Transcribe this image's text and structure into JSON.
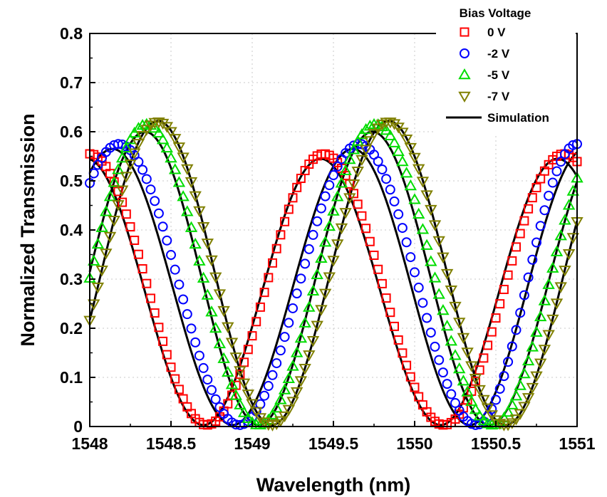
{
  "chart_data": {
    "type": "scatter",
    "xlabel": "Wavelength (nm)",
    "ylabel": "Normalized Transmission",
    "xlim": [
      1548,
      1551
    ],
    "ylim": [
      0,
      0.8
    ],
    "x_ticks": [
      "1548",
      "1548.5",
      "1549",
      "1549.5",
      "1550",
      "1550.5",
      "1551"
    ],
    "y_ticks": [
      "0",
      "0.1",
      "0.2",
      "0.3",
      "0.4",
      "0.5",
      "0.6",
      "0.7",
      "0.8"
    ],
    "grid": true,
    "legend": {
      "title": "Bias Voltage",
      "position": "top-right",
      "entries": [
        "0 V",
        "-2 V",
        "-5 V",
        "-7 V",
        "Simulation"
      ]
    },
    "series": [
      {
        "name": "0 V",
        "marker": "square",
        "color": "#ff0000",
        "peak_max": 0.555,
        "valley_min": 0.003,
        "peaks": [
          1548.0,
          1549.44,
          1550.92
        ],
        "valleys": [
          1548.72,
          1550.18
        ]
      },
      {
        "name": "-2 V",
        "marker": "circle",
        "color": "#0000ff",
        "peak_max": 0.575,
        "valley_min": 0.003,
        "peaks": [
          1548.18,
          1549.66,
          1551.0
        ],
        "valleys": [
          1548.92,
          1550.38
        ]
      },
      {
        "name": "-5 V",
        "marker": "triangle-up",
        "color": "#00dd00",
        "peak_max": 0.615,
        "valley_min": 0.003,
        "peaks": [
          1548.35,
          1549.76
        ],
        "valleys": [
          1549.04,
          1550.48
        ]
      },
      {
        "name": "-7 V",
        "marker": "triangle-down",
        "color": "#808000",
        "peak_max": 0.62,
        "valley_min": 0.003,
        "peaks": [
          1548.42,
          1549.84
        ],
        "valleys": [
          1549.12,
          1550.56
        ]
      }
    ],
    "simulation": {
      "name": "Simulation",
      "color": "#000000",
      "curves": [
        {
          "peak_max": 0.545,
          "peaks": [
            1547.98,
            1549.42,
            1550.88
          ],
          "valleys": [
            1548.7,
            1550.16
          ]
        },
        {
          "peak_max": 0.565,
          "peaks": [
            1548.14,
            1549.62,
            1551.05
          ],
          "valleys": [
            1548.88,
            1550.34
          ]
        },
        {
          "peak_max": 0.6,
          "peaks": [
            1548.34,
            1549.74,
            1551.2
          ],
          "valleys": [
            1549.04,
            1550.46
          ]
        },
        {
          "peak_max": 0.622,
          "peaks": [
            1548.42,
            1549.84,
            1551.28
          ],
          "valleys": [
            1549.12,
            1550.56
          ]
        }
      ]
    }
  }
}
